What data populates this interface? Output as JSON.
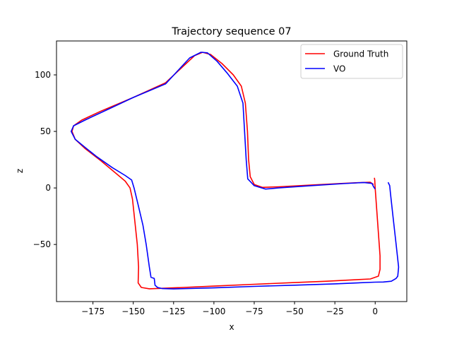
{
  "chart_data": {
    "type": "line",
    "title": "Trajectory sequence 07",
    "xlabel": "x",
    "ylabel": "z",
    "xlim": [
      -197.6,
      19.6
    ],
    "ylim": [
      -100.5,
      130
    ],
    "xticks": [
      -175,
      -150,
      -125,
      -100,
      -75,
      -50,
      -25,
      0
    ],
    "yticks": [
      -50,
      0,
      50,
      100
    ],
    "legend": "top-right",
    "grid": false,
    "series": [
      {
        "name": "Ground Truth",
        "color": "#ff0000",
        "points": [
          [
            -0.5,
            9
          ],
          [
            -0.3,
            7
          ],
          [
            0,
            0
          ],
          [
            1,
            -20
          ],
          [
            2,
            -40
          ],
          [
            3,
            -60
          ],
          [
            3,
            -72
          ],
          [
            2,
            -78
          ],
          [
            -3,
            -80.5
          ],
          [
            -10,
            -81
          ],
          [
            -30,
            -82.5
          ],
          [
            -50,
            -83.7
          ],
          [
            -75,
            -85.2
          ],
          [
            -100,
            -86.8
          ],
          [
            -125,
            -88.4
          ],
          [
            -140,
            -89.2
          ],
          [
            -145,
            -88
          ],
          [
            -147,
            -84
          ],
          [
            -146.7,
            -70
          ],
          [
            -147.5,
            -50
          ],
          [
            -149,
            -30
          ],
          [
            -150.5,
            -10
          ],
          [
            -152,
            0
          ],
          [
            -155,
            6
          ],
          [
            -160,
            12
          ],
          [
            -170,
            24
          ],
          [
            -180,
            35
          ],
          [
            -186,
            43
          ],
          [
            -188,
            50
          ],
          [
            -187,
            55
          ],
          [
            -182,
            60
          ],
          [
            -170,
            68
          ],
          [
            -150,
            80
          ],
          [
            -130,
            93
          ],
          [
            -112,
            117
          ],
          [
            -107,
            120
          ],
          [
            -102,
            118
          ],
          [
            -95,
            110
          ],
          [
            -88,
            100
          ],
          [
            -83,
            90
          ],
          [
            -80.5,
            75
          ],
          [
            -79.2,
            50
          ],
          [
            -78.5,
            25
          ],
          [
            -77.5,
            10
          ],
          [
            -75,
            3
          ],
          [
            -70,
            0.5
          ],
          [
            -60,
            1
          ],
          [
            -40,
            2.5
          ],
          [
            -20,
            4
          ],
          [
            -8,
            4.8
          ],
          [
            -3,
            5
          ],
          [
            -1,
            3
          ]
        ]
      },
      {
        "name": "VO",
        "color": "#0000ff",
        "points": [
          [
            8,
            5
          ],
          [
            9,
            2
          ],
          [
            9.5,
            -5
          ],
          [
            11,
            -25
          ],
          [
            13,
            -50
          ],
          [
            14.5,
            -70
          ],
          [
            14,
            -78
          ],
          [
            13,
            -80
          ],
          [
            10,
            -82.5
          ],
          [
            5,
            -83.2
          ],
          [
            0,
            -83.3
          ],
          [
            -25,
            -84.8
          ],
          [
            -50,
            -86
          ],
          [
            -75,
            -87.1
          ],
          [
            -100,
            -88.4
          ],
          [
            -125,
            -89.3
          ],
          [
            -132,
            -89
          ],
          [
            -135,
            -88
          ],
          [
            -136.5,
            -86
          ],
          [
            -137,
            -80
          ],
          [
            -139,
            -79
          ],
          [
            -140,
            -70
          ],
          [
            -142,
            -50
          ],
          [
            -144,
            -33
          ],
          [
            -147,
            -15
          ],
          [
            -149.5,
            0
          ],
          [
            -151,
            7
          ],
          [
            -155,
            11
          ],
          [
            -163,
            18
          ],
          [
            -173,
            28
          ],
          [
            -180,
            36
          ],
          [
            -186,
            43
          ],
          [
            -188.5,
            50
          ],
          [
            -187,
            55
          ],
          [
            -180,
            60
          ],
          [
            -165,
            70
          ],
          [
            -150,
            80
          ],
          [
            -130,
            92
          ],
          [
            -115,
            115
          ],
          [
            -108,
            120
          ],
          [
            -104,
            119.5
          ],
          [
            -98,
            112
          ],
          [
            -92,
            102
          ],
          [
            -85.5,
            90
          ],
          [
            -82,
            75
          ],
          [
            -81,
            50
          ],
          [
            -80,
            25
          ],
          [
            -79,
            8
          ],
          [
            -75,
            2
          ],
          [
            -68,
            -1
          ],
          [
            -60,
            0
          ],
          [
            -40,
            2
          ],
          [
            -20,
            3.8
          ],
          [
            -7,
            4.8
          ],
          [
            -2,
            4
          ],
          [
            -1,
            1
          ],
          [
            0,
            -1
          ]
        ]
      }
    ]
  }
}
